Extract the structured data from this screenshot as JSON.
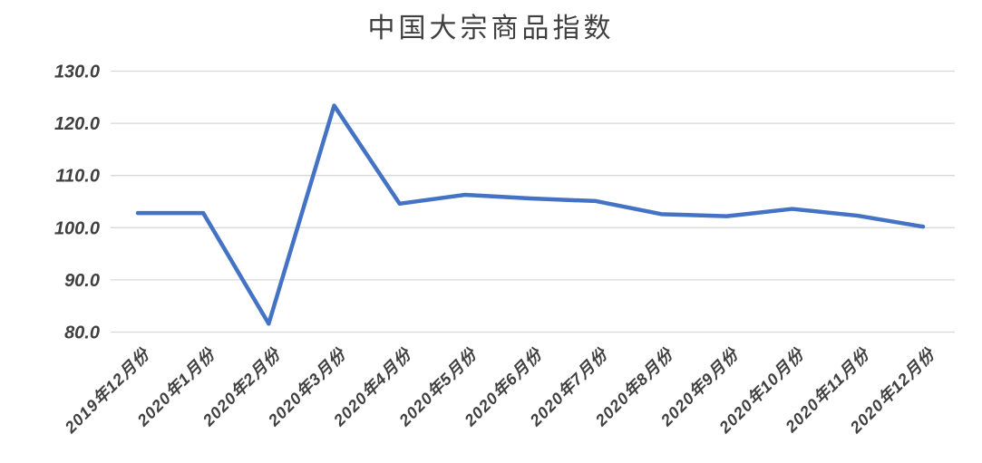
{
  "chart_data": {
    "type": "line",
    "title": "中国大宗商品指数",
    "categories": [
      "2019年12月份",
      "2020年1月份",
      "2020年2月份",
      "2020年3月份",
      "2020年4月份",
      "2020年5月份",
      "2020年6月份",
      "2020年7月份",
      "2020年8月份",
      "2020年9月份",
      "2020年10月份",
      "2020年11月份",
      "2020年12月份"
    ],
    "series": [
      {
        "name": "中国大宗商品指数",
        "values": [
          102.8,
          102.8,
          81.6,
          123.4,
          104.6,
          106.3,
          105.6,
          105.1,
          102.6,
          102.2,
          103.6,
          102.3,
          100.2
        ]
      }
    ],
    "xlabel": "",
    "ylabel": "",
    "ylim": [
      80.0,
      130.0
    ],
    "ytick_step": 10,
    "ytick_labels": [
      "80.0",
      "90.0",
      "100.0",
      "110.0",
      "120.0",
      "130.0"
    ],
    "grid": "horizontal-only",
    "legend_position": "none",
    "x_label_rotation_deg": 45,
    "colors": {
      "line": "#4472C4",
      "gridline": "#D9D9D9",
      "tick_text": "#404040",
      "title_text": "#3F3F3F",
      "background": "#FFFFFF"
    }
  }
}
